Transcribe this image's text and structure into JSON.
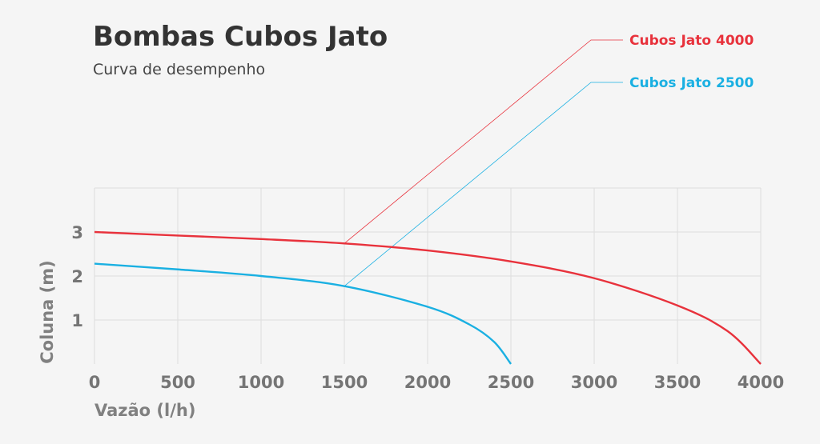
{
  "chart_data": {
    "type": "line",
    "title": "Bombas Cubos Jato",
    "subtitle": "Curva de desempenho",
    "xlabel": "Vazão (l/h)",
    "ylabel": "Coluna (m)",
    "xlim": [
      0,
      4000
    ],
    "ylim": [
      0,
      4
    ],
    "x_ticks": [
      "0",
      "500",
      "1000",
      "1500",
      "2000",
      "2500",
      "3000",
      "3500",
      "4000"
    ],
    "y_ticks": [
      "1",
      "2",
      "3"
    ],
    "grid": true,
    "legend_placement": "top-right",
    "series": [
      {
        "name": "Cubos Jato 4000",
        "color": "#e8323c",
        "x": [
          0,
          500,
          1000,
          1500,
          2000,
          2500,
          3000,
          3500,
          3800,
          4000
        ],
        "y": [
          3.0,
          2.92,
          2.84,
          2.74,
          2.58,
          2.33,
          1.95,
          1.33,
          0.75,
          0.0
        ],
        "callout_at": [
          1500,
          2.74
        ]
      },
      {
        "name": "Cubos Jato 2500",
        "color": "#1ab0e2",
        "x": [
          0,
          500,
          1000,
          1500,
          2000,
          2250,
          2400,
          2500
        ],
        "y": [
          2.28,
          2.15,
          2.0,
          1.77,
          1.3,
          0.9,
          0.5,
          0.0
        ],
        "callout_at": [
          1500,
          1.77
        ]
      }
    ]
  }
}
